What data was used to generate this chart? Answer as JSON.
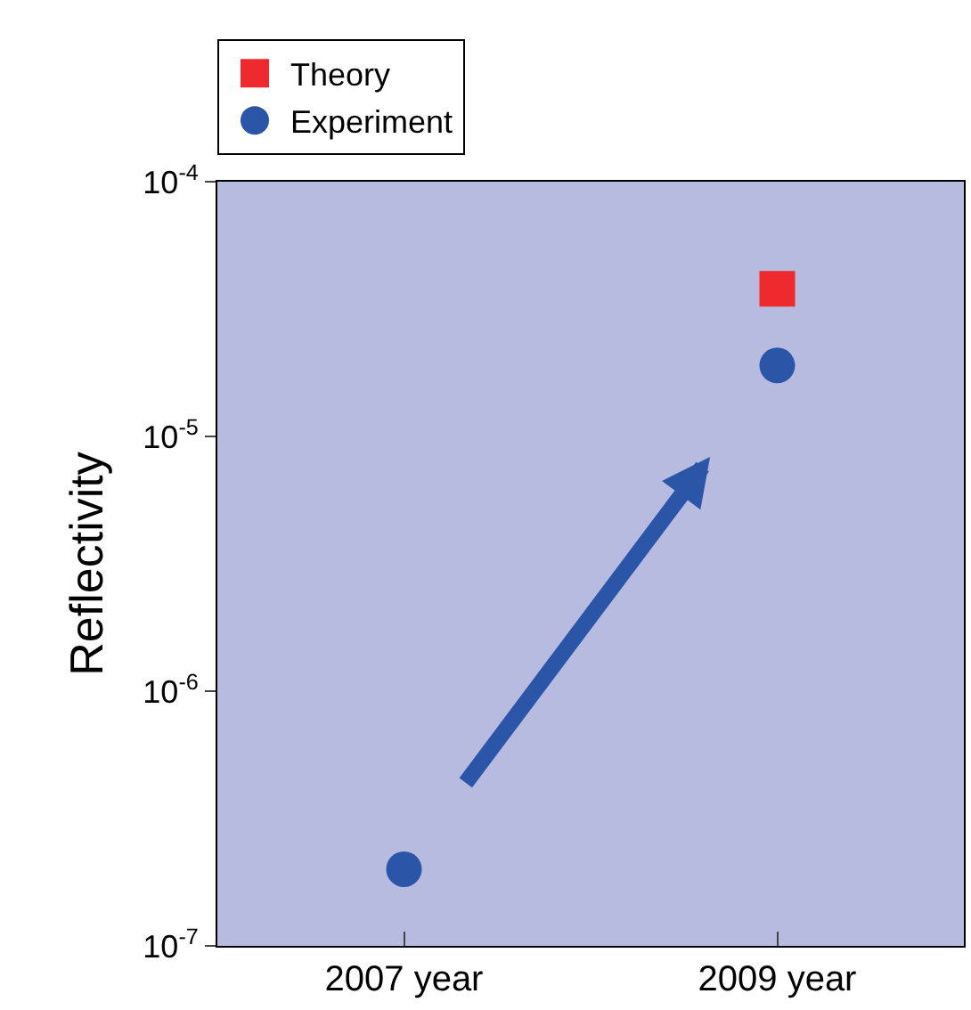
{
  "chart_data": {
    "type": "scatter",
    "ylabel": "Reflectivity",
    "categories": [
      "2007 year",
      "2009 year"
    ],
    "series": [
      {
        "name": "Theory",
        "color": "#ee2a2e",
        "marker": "square",
        "values": [
          null,
          3.8e-05
        ]
      },
      {
        "name": "Experiment",
        "color": "#2b56a8",
        "marker": "circle",
        "values": [
          2e-07,
          1.9e-05
        ]
      }
    ],
    "log": "y",
    "ylim": [
      1e-07,
      0.0001
    ],
    "yticks": [
      {
        "value": 1e-07,
        "label": "10$^{-7}$"
      },
      {
        "value": 1e-06,
        "label": "10$^{-6}$"
      },
      {
        "value": 1e-05,
        "label": "10$^{-5}$"
      },
      {
        "value": 0.0001,
        "label": "10$^{-4}$"
      }
    ],
    "grid": false,
    "legend": "top left"
  }
}
